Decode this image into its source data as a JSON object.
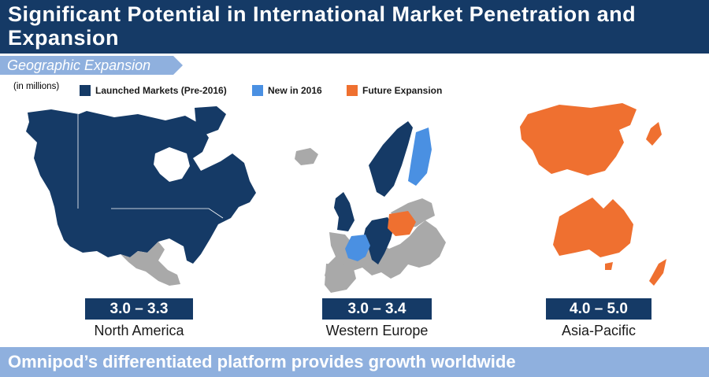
{
  "header": {
    "title": "Significant Potential in International Market Penetration and Expansion"
  },
  "section": {
    "label": "Geographic Expansion"
  },
  "units_note": "(in millions)",
  "legend": [
    {
      "label": "Launched Markets (Pre-2016)",
      "color": "#153a66"
    },
    {
      "label": "New in 2016",
      "color": "#4a90e2"
    },
    {
      "label": "Future Expansion",
      "color": "#ef7030"
    }
  ],
  "other_color": "#a9a9a9",
  "regions": [
    {
      "name": "North America",
      "range": "3.0 – 3.3"
    },
    {
      "name": "Western Europe",
      "range": "3.0 – 3.4"
    },
    {
      "name": "Asia-Pacific",
      "range": "4.0 – 5.0"
    }
  ],
  "footer": {
    "text": "Omnipod’s differentiated platform provides growth worldwide"
  }
}
